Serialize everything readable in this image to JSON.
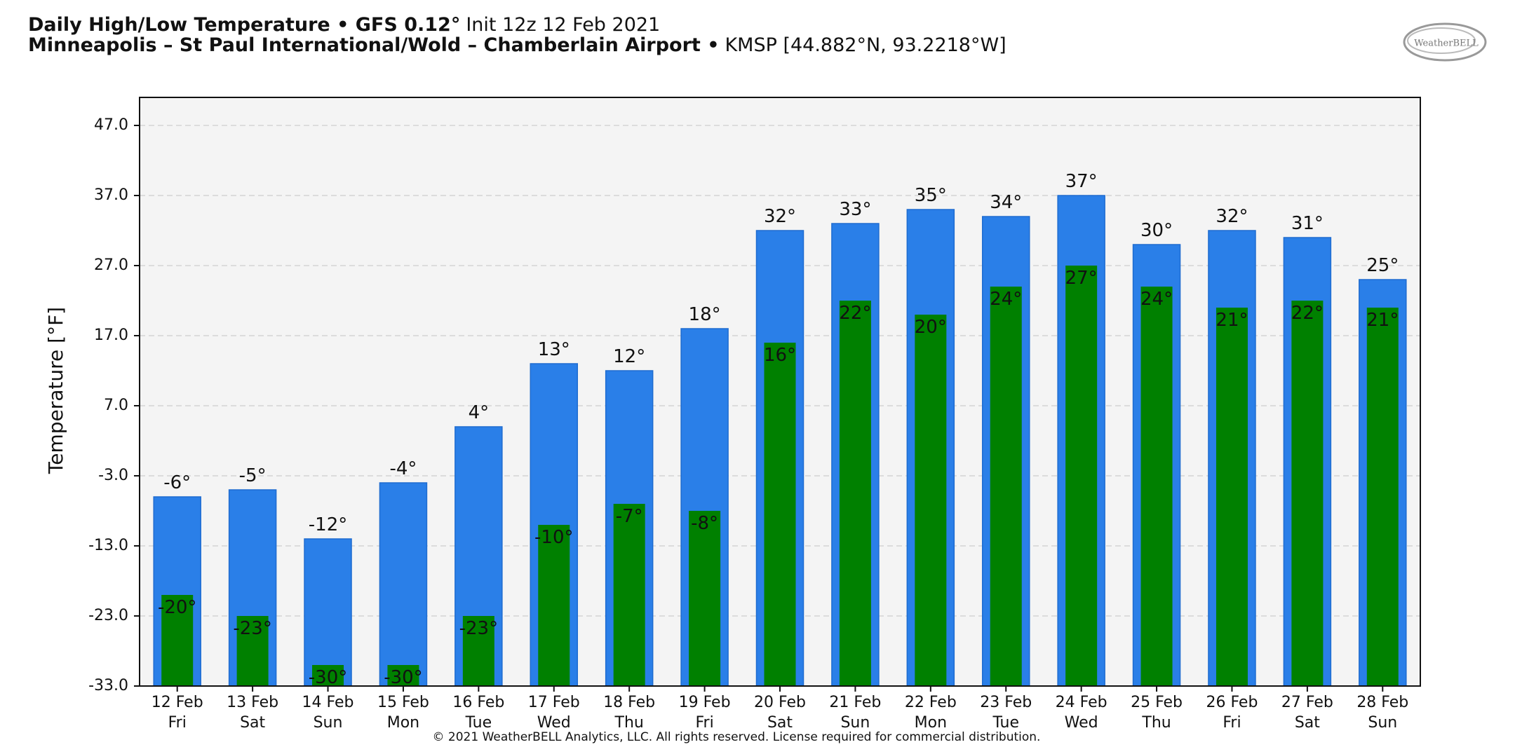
{
  "chart_data": {
    "type": "bar",
    "title": "Daily High/Low Temperature • GFS 0.12°",
    "init": "Init 12z 12 Feb 2021",
    "subtitle": "Minneapolis – St Paul International/Wold – Chamberlain Airport •",
    "station": "KMSP [44.882°N, 93.2218°W]",
    "logo": "WeatherBELL",
    "y_label": "Temperature [°F]",
    "copyright": "© 2021 WeatherBELL Analytics, LLC. All rights reserved. License required for commercial distribution.",
    "categories": [
      "12 Feb",
      "13 Feb",
      "14 Feb",
      "15 Feb",
      "16 Feb",
      "17 Feb",
      "18 Feb",
      "19 Feb",
      "20 Feb",
      "21 Feb",
      "22 Feb",
      "23 Feb",
      "24 Feb",
      "25 Feb",
      "26 Feb",
      "27 Feb",
      "28 Feb"
    ],
    "weekdays": [
      "Fri",
      "Sat",
      "Sun",
      "Mon",
      "Tue",
      "Wed",
      "Thu",
      "Fri",
      "Sat",
      "Sun",
      "Mon",
      "Tue",
      "Wed",
      "Thu",
      "Fri",
      "Sat",
      "Sun"
    ],
    "series": [
      {
        "color": "#2a7fe8",
        "values": [
          -6,
          -5,
          -12,
          -4,
          4,
          13,
          12,
          18,
          32,
          33,
          35,
          34,
          37,
          30,
          32,
          31,
          25
        ],
        "value_labels": [
          "-6°",
          "-5°",
          "-12°",
          "-4°",
          "4°",
          "13°",
          "12°",
          "18°",
          "32°",
          "33°",
          "35°",
          "34°",
          "37°",
          "30°",
          "32°",
          "31°",
          "25°"
        ]
      },
      {
        "color": "#008000",
        "values": [
          -20,
          -23,
          -30,
          -30,
          -23,
          -10,
          -7,
          -8,
          16,
          22,
          20,
          24,
          27,
          24,
          21,
          22,
          21
        ],
        "value_labels": [
          "-20°",
          "-23°",
          "-30°",
          "-30°",
          "-23°",
          "-10°",
          "-7°",
          "-8°",
          "16°",
          "22°",
          "20°",
          "24°",
          "27°",
          "24°",
          "21°",
          "22°",
          "21°"
        ]
      }
    ],
    "ylim": [
      -33,
      51
    ],
    "yticks": [
      {
        "value": -33,
        "label": "-33.0"
      },
      {
        "value": -23,
        "label": "-23.0"
      },
      {
        "value": -13,
        "label": "-13.0"
      },
      {
        "value": -3,
        "label": "-3.0"
      },
      {
        "value": 7,
        "label": "7.0"
      },
      {
        "value": 17,
        "label": "17.0"
      },
      {
        "value": 27,
        "label": "27.0"
      },
      {
        "value": 37,
        "label": "37.0"
      },
      {
        "value": 47,
        "label": "47.0"
      }
    ],
    "grid": true
  }
}
